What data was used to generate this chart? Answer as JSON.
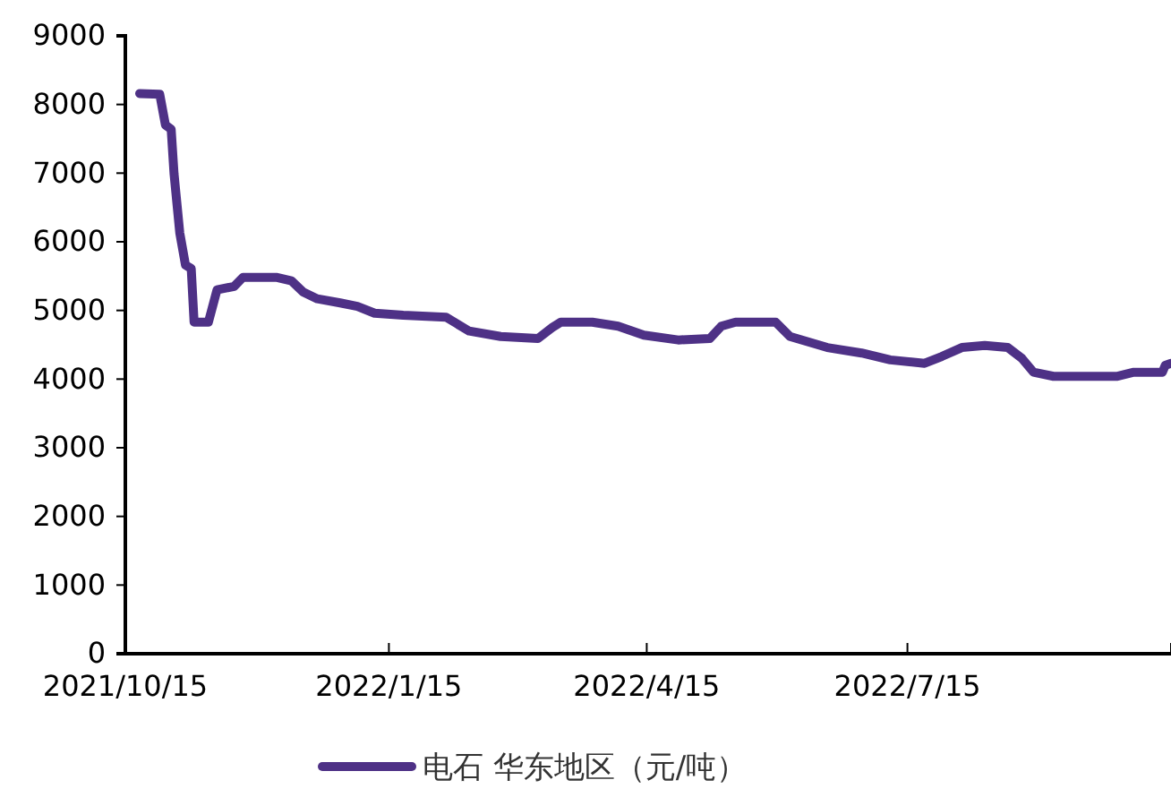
{
  "chart_data": {
    "type": "line",
    "x": [
      "2021-10-20",
      "2021-10-27",
      "2021-10-29",
      "2021-10-31",
      "2021-11-01",
      "2021-11-03",
      "2021-11-05",
      "2021-11-07",
      "2021-11-08",
      "2021-11-13",
      "2021-11-16",
      "2021-11-22",
      "2021-11-25",
      "2021-12-07",
      "2021-12-12",
      "2021-12-16",
      "2021-12-21",
      "2021-12-29",
      "2022-01-04",
      "2022-01-10",
      "2022-01-20",
      "2022-02-04",
      "2022-02-12",
      "2022-02-23",
      "2022-03-08",
      "2022-03-13",
      "2022-03-16",
      "2022-03-27",
      "2022-04-05",
      "2022-04-14",
      "2022-04-26",
      "2022-05-07",
      "2022-05-11",
      "2022-05-16",
      "2022-05-30",
      "2022-06-04",
      "2022-06-17",
      "2022-06-29",
      "2022-07-09",
      "2022-07-21",
      "2022-07-27",
      "2022-08-03",
      "2022-08-11",
      "2022-08-19",
      "2022-08-24",
      "2022-08-28",
      "2022-09-04",
      "2022-09-26",
      "2022-10-02",
      "2022-10-12",
      "2022-10-13",
      "2022-10-15"
    ],
    "series": [
      {
        "name": "电石 华东地区（元/吨）",
        "color": "#4e3186",
        "values": [
          8160,
          8150,
          7700,
          7640,
          6990,
          6130,
          5660,
          5610,
          4830,
          4830,
          5300,
          5350,
          5480,
          5480,
          5430,
          5270,
          5170,
          5110,
          5060,
          4960,
          4930,
          4900,
          4700,
          4620,
          4590,
          4750,
          4830,
          4830,
          4770,
          4640,
          4570,
          4590,
          4770,
          4830,
          4830,
          4620,
          4460,
          4380,
          4280,
          4230,
          4330,
          4460,
          4490,
          4460,
          4300,
          4100,
          4040,
          4040,
          4100,
          4100,
          4200,
          4230
        ]
      }
    ],
    "xlim": [
      "2021-10-15",
      "2022-10-15"
    ],
    "xticks": [
      {
        "value": "2021-10-15",
        "label": "2021/10/15"
      },
      {
        "value": "2022-01-15",
        "label": "2022/1/15"
      },
      {
        "value": "2022-04-15",
        "label": "2022/4/15"
      },
      {
        "value": "2022-07-15",
        "label": "2022/7/15"
      },
      {
        "value": "2022-10-15",
        "label": null
      }
    ],
    "ylim": [
      0,
      9000
    ],
    "yticks": [
      0,
      1000,
      2000,
      3000,
      4000,
      5000,
      6000,
      7000,
      8000,
      9000
    ],
    "grid": false,
    "legend": "bottom",
    "marker": "none",
    "line_style": "solid"
  }
}
